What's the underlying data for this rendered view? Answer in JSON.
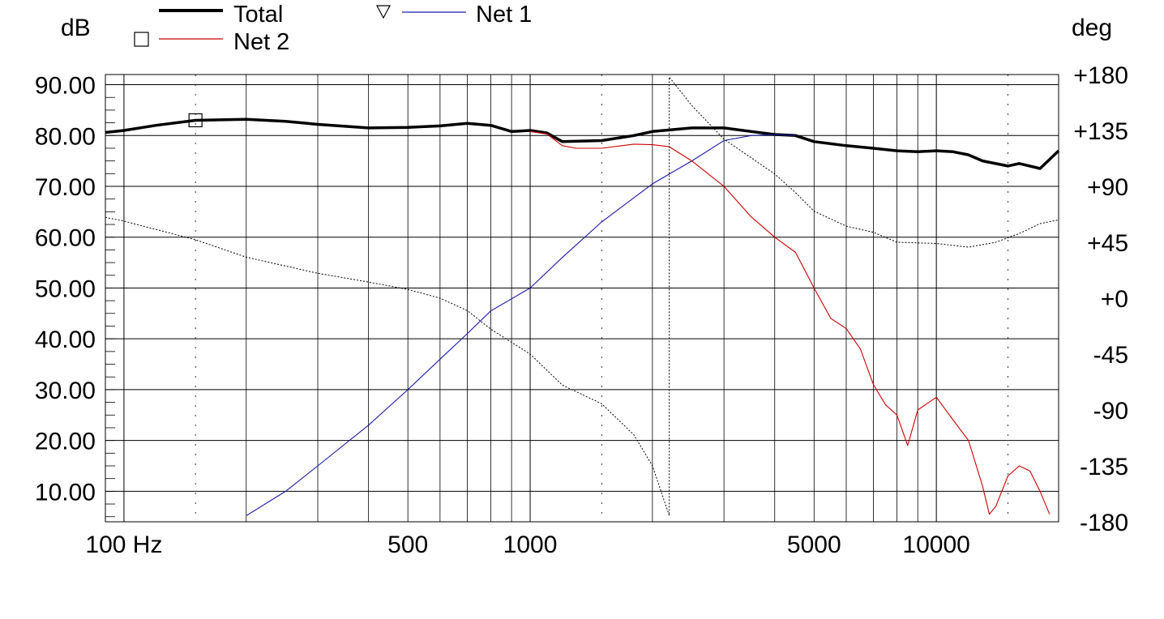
{
  "chart_data": {
    "type": "line",
    "xscale": "log",
    "xlim": [
      90,
      20000
    ],
    "ylim": [
      4,
      92
    ],
    "ylim_right": [
      -180,
      180
    ],
    "y_unit_left": "dB",
    "y_unit_right": "deg",
    "grid": true,
    "legend_position": "top",
    "x_ticks": [
      {
        "value": 100,
        "label": "100 Hz"
      },
      {
        "value": 500,
        "label": "500"
      },
      {
        "value": 1000,
        "label": "1000"
      },
      {
        "value": 5000,
        "label": "5000"
      },
      {
        "value": 10000,
        "label": "10000"
      }
    ],
    "y_ticks_left": [
      {
        "value": 90,
        "label": "90.00"
      },
      {
        "value": 80,
        "label": "80.00"
      },
      {
        "value": 70,
        "label": "70.00"
      },
      {
        "value": 60,
        "label": "60.00"
      },
      {
        "value": 50,
        "label": "50.00"
      },
      {
        "value": 40,
        "label": "40.00"
      },
      {
        "value": 30,
        "label": "30.00"
      },
      {
        "value": 20,
        "label": "20.00"
      },
      {
        "value": 10,
        "label": "10.00"
      }
    ],
    "y_ticks_right": [
      {
        "value": 180,
        "label": "+180"
      },
      {
        "value": 135,
        "label": "+135"
      },
      {
        "value": 90,
        "label": "+90"
      },
      {
        "value": 45,
        "label": "+45"
      },
      {
        "value": 0,
        "label": "+0"
      },
      {
        "value": -45,
        "label": "-45"
      },
      {
        "value": -90,
        "label": "-90"
      },
      {
        "value": -135,
        "label": "-135"
      },
      {
        "value": -180,
        "label": "-180"
      }
    ],
    "series": [
      {
        "name": "Total",
        "axis": "left",
        "color": "#000000",
        "style": "thick",
        "points": [
          [
            90,
            80.6
          ],
          [
            100,
            81
          ],
          [
            120,
            82
          ],
          [
            150,
            83
          ],
          [
            200,
            83.2
          ],
          [
            250,
            82.8
          ],
          [
            300,
            82.2
          ],
          [
            400,
            81.5
          ],
          [
            500,
            81.6
          ],
          [
            600,
            81.9
          ],
          [
            700,
            82.4
          ],
          [
            800,
            82
          ],
          [
            900,
            80.8
          ],
          [
            1000,
            81
          ],
          [
            1100,
            80.5
          ],
          [
            1200,
            78.8
          ],
          [
            1500,
            79
          ],
          [
            1800,
            80
          ],
          [
            2000,
            80.8
          ],
          [
            2500,
            81.5
          ],
          [
            3000,
            81.5
          ],
          [
            3500,
            80.8
          ],
          [
            4000,
            80.2
          ],
          [
            4500,
            80
          ],
          [
            5000,
            78.8
          ],
          [
            6000,
            78
          ],
          [
            7000,
            77.5
          ],
          [
            8000,
            77
          ],
          [
            9000,
            76.8
          ],
          [
            10000,
            77
          ],
          [
            11000,
            76.8
          ],
          [
            12000,
            76.2
          ],
          [
            13000,
            75
          ],
          [
            15000,
            74
          ],
          [
            16000,
            74.5
          ],
          [
            18000,
            73.5
          ],
          [
            20000,
            77
          ]
        ]
      },
      {
        "name": "Net 1",
        "axis": "left",
        "color": "#1a1aa8",
        "style": "thin",
        "points": [
          [
            200,
            5.2
          ],
          [
            250,
            10
          ],
          [
            300,
            15
          ],
          [
            400,
            23
          ],
          [
            500,
            30
          ],
          [
            600,
            36
          ],
          [
            700,
            41
          ],
          [
            800,
            45.5
          ],
          [
            1000,
            50
          ],
          [
            1200,
            56
          ],
          [
            1500,
            63
          ],
          [
            2000,
            70.5
          ],
          [
            2500,
            75
          ],
          [
            3000,
            79
          ],
          [
            3500,
            80
          ],
          [
            4000,
            80.2
          ],
          [
            4500,
            80
          ]
        ]
      },
      {
        "name": "Net 2",
        "axis": "left",
        "color": "#cc0000",
        "style": "thin",
        "points": [
          [
            1000,
            80.8
          ],
          [
            1100,
            80.3
          ],
          [
            1200,
            78
          ],
          [
            1300,
            77.5
          ],
          [
            1500,
            77.5
          ],
          [
            1800,
            78.3
          ],
          [
            2000,
            78.2
          ],
          [
            2200,
            77.8
          ],
          [
            2500,
            75
          ],
          [
            3000,
            70
          ],
          [
            3500,
            64
          ],
          [
            4000,
            60
          ],
          [
            4500,
            57
          ],
          [
            5000,
            50
          ],
          [
            5500,
            44
          ],
          [
            6000,
            42
          ],
          [
            6500,
            38
          ],
          [
            7000,
            31
          ],
          [
            7500,
            27
          ],
          [
            8000,
            25
          ],
          [
            8500,
            19
          ],
          [
            9000,
            26
          ],
          [
            10000,
            28.5
          ],
          [
            11000,
            24
          ],
          [
            12000,
            20
          ],
          [
            13000,
            11
          ],
          [
            13500,
            5.5
          ],
          [
            14000,
            7
          ],
          [
            15000,
            13
          ],
          [
            16000,
            15
          ],
          [
            17000,
            14
          ],
          [
            18000,
            10
          ],
          [
            19000,
            5.5
          ]
        ]
      },
      {
        "name": "",
        "axis": "right",
        "color": "#000000",
        "style": "dotted",
        "points": [
          [
            90,
            65
          ],
          [
            100,
            62
          ],
          [
            150,
            47
          ],
          [
            200,
            33
          ],
          [
            300,
            20
          ],
          [
            400,
            13
          ],
          [
            500,
            7
          ],
          [
            600,
            0
          ],
          [
            700,
            -10
          ],
          [
            800,
            -25
          ],
          [
            1000,
            -45
          ],
          [
            1200,
            -70
          ],
          [
            1500,
            -85
          ],
          [
            1800,
            -110
          ],
          [
            2000,
            -135
          ],
          [
            2200,
            -175
          ],
          [
            2200,
            178
          ],
          [
            2500,
            155
          ],
          [
            3000,
            128
          ],
          [
            3500,
            113
          ],
          [
            4000,
            100
          ],
          [
            4500,
            85
          ],
          [
            5000,
            70
          ],
          [
            6000,
            58
          ],
          [
            7000,
            53
          ],
          [
            8000,
            45
          ],
          [
            10000,
            44
          ],
          [
            12000,
            41
          ],
          [
            14000,
            45
          ],
          [
            16000,
            52
          ],
          [
            18000,
            60
          ],
          [
            20000,
            63
          ]
        ]
      }
    ],
    "markers": [
      {
        "series": "Net 2",
        "shape": "square",
        "x": 150,
        "y": 83
      }
    ]
  },
  "legend": {
    "total": "Total",
    "net1": "Net 1",
    "net2": "Net 2"
  },
  "axis_titles": {
    "left": "dB",
    "right": "deg"
  }
}
